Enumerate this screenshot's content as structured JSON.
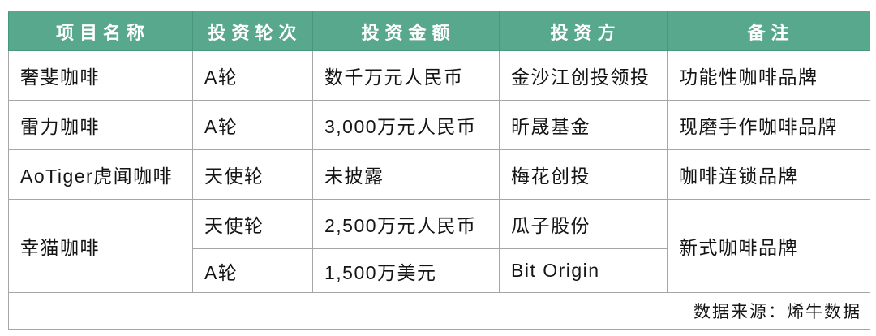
{
  "chart_data": {
    "type": "table",
    "title": "",
    "columns": [
      "项目名称",
      "投资轮次",
      "投资金额",
      "投资方",
      "备注"
    ],
    "rows": [
      [
        "奢斐咖啡",
        "A轮",
        "数千万元人民币",
        "金沙江创投领投",
        "功能性咖啡品牌"
      ],
      [
        "雷力咖啡",
        "A轮",
        "3,000万元人民币",
        "昕晟基金",
        "现磨手作咖啡品牌"
      ],
      [
        "AoTiger虎闻咖啡",
        "天使轮",
        "未披露",
        "梅花创投",
        "咖啡连锁品牌"
      ],
      [
        "幸猫咖啡",
        "天使轮",
        "2,500万元人民币",
        "瓜子股份",
        "新式咖啡品牌"
      ],
      [
        "幸猫咖啡",
        "A轮",
        "1,500万美元",
        "Bit Origin",
        "新式咖啡品牌"
      ]
    ],
    "merged_cells": [
      {
        "column": "项目名称",
        "row_span": [
          3,
          4
        ],
        "value": "幸猫咖啡"
      },
      {
        "column": "备注",
        "row_span": [
          3,
          4
        ],
        "value": "新式咖啡品牌"
      }
    ],
    "source_note": "数据来源：烯牛数据",
    "layout": {
      "header_position": "top",
      "grid": true
    }
  },
  "colors": {
    "header_bg": "#57A88C",
    "header_text": "#FFFFFF",
    "header_border": "#4A9679",
    "border": "#A6A6A6",
    "body_text": "#141414"
  }
}
